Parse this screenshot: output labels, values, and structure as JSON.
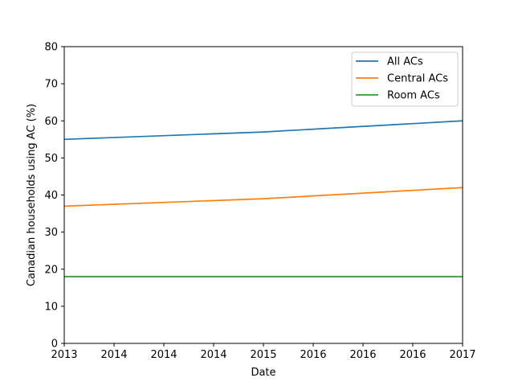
{
  "chart_data": {
    "type": "line",
    "title": "",
    "xlabel": "Date",
    "ylabel": "Canadian households using AC (%)",
    "x": [
      2013,
      2015,
      2017
    ],
    "x_tick_labels": [
      "2013",
      "2014",
      "2014",
      "2014",
      "2015",
      "2016",
      "2016",
      "2016",
      "2017"
    ],
    "y_ticks": [
      0,
      10,
      20,
      30,
      40,
      50,
      60,
      70,
      80
    ],
    "xlim": [
      2013,
      2017
    ],
    "ylim": [
      0,
      80
    ],
    "grid": false,
    "legend_position": "top-right",
    "series": [
      {
        "name": "All ACs",
        "color": "#1f77b4",
        "values": [
          55,
          57,
          60
        ]
      },
      {
        "name": "Central ACs",
        "color": "#ff7f0e",
        "values": [
          37,
          39,
          42
        ]
      },
      {
        "name": "Room ACs",
        "color": "#2ca02c",
        "values": [
          18,
          18,
          18
        ]
      }
    ]
  }
}
